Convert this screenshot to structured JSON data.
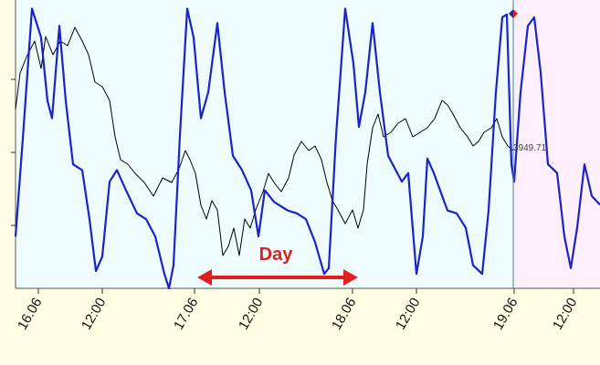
{
  "chart_data": {
    "type": "line",
    "xlim": [
      0,
      640
    ],
    "xticks": [
      {
        "value": 25,
        "label": "16.06"
      },
      {
        "value": 95,
        "label": "12:00"
      },
      {
        "value": 196,
        "label": "17.06"
      },
      {
        "value": 267,
        "label": "12:00"
      },
      {
        "value": 369,
        "label": "18.06"
      },
      {
        "value": 439,
        "label": "12:00"
      },
      {
        "value": 546,
        "label": "19.06"
      },
      {
        "value": 611,
        "label": "12:00"
      }
    ],
    "ylim": [
      3912.75,
      3991.75
    ],
    "yticks": [
      3930,
      3950,
      3970
    ],
    "y2lim": [
      0,
      100
    ],
    "last_value": 3949.71,
    "annotation": "Day",
    "series": [
      {
        "color": "#1a22c8",
        "axis": "y2",
        "x": [
          0,
          8,
          18,
          28,
          35,
          40,
          48,
          55,
          63,
          73,
          81,
          88,
          95,
          103,
          111,
          121,
          133,
          143,
          153,
          163,
          168,
          173,
          180,
          188,
          195,
          203,
          211,
          221,
          229,
          238,
          248,
          258,
          266,
          273,
          283,
          298,
          308,
          318,
          328,
          338,
          343,
          351,
          361,
          370,
          376,
          383,
          391,
          399,
          408,
          423,
          430,
          439,
          446,
          451,
          458,
          473,
          483,
          493,
          501,
          511,
          518,
          526,
          533,
          538,
          543,
          546,
          553,
          561,
          568,
          575,
          583,
          593,
          601,
          608,
          615,
          623,
          631,
          640
        ],
        "values": [
          18,
          52,
          97,
          87,
          65,
          59,
          91,
          65,
          43,
          41,
          24,
          6,
          11,
          37,
          41,
          34,
          26,
          24,
          18,
          5,
          0,
          8,
          53,
          97,
          87,
          59,
          68,
          92,
          68,
          46,
          41,
          34,
          18,
          34,
          30,
          27,
          26,
          24,
          16,
          5,
          7,
          53,
          97,
          78,
          56,
          68,
          92,
          68,
          46,
          37,
          40,
          5,
          18,
          45,
          40,
          27,
          26,
          21,
          8,
          5,
          27,
          68,
          94,
          95,
          43,
          37,
          68,
          91,
          94,
          75,
          43,
          40,
          18,
          7,
          21,
          43,
          32,
          29
        ]
      },
      {
        "color": "#000000",
        "x": [
          0,
          5,
          13,
          21,
          28,
          33,
          41,
          49,
          57,
          65,
          73,
          80,
          87,
          95,
          103,
          109,
          115,
          123,
          131,
          141,
          151,
          161,
          171,
          179,
          186,
          191,
          197,
          203,
          209,
          215,
          221,
          227,
          233,
          239,
          245,
          251,
          257,
          263,
          271,
          277,
          283,
          291,
          299,
          305,
          313,
          321,
          328,
          335,
          341,
          347,
          353,
          361,
          369,
          375,
          381,
          385,
          391,
          397,
          403,
          411,
          419,
          427,
          435,
          443,
          451,
          459,
          467,
          473,
          479,
          487,
          495,
          501,
          507,
          513,
          521,
          527,
          533,
          539,
          545
        ],
        "values": [
          3961.75,
          3971.75,
          3976.75,
          3980.5,
          3973,
          3981.75,
          3976.75,
          3980.5,
          3979.25,
          3984.25,
          3980.5,
          3976.75,
          3969.25,
          3968,
          3964.25,
          3954.25,
          3948,
          3946.75,
          3944.25,
          3941.75,
          3938,
          3943,
          3941.75,
          3945.5,
          3950.5,
          3948,
          3944.25,
          3935.5,
          3931.75,
          3936.75,
          3934.25,
          3921.75,
          3924.25,
          3929.25,
          3921.75,
          3931.75,
          3929.25,
          3934.25,
          3939.25,
          3944.25,
          3941.75,
          3939.25,
          3943,
          3949.25,
          3953,
          3950.5,
          3951.75,
          3948,
          3941.75,
          3936.75,
          3934.25,
          3930.5,
          3934.25,
          3929.25,
          3934.25,
          3946.75,
          3956.75,
          3960.5,
          3954.25,
          3955.5,
          3958,
          3959.25,
          3954.25,
          3955.5,
          3956.75,
          3959.25,
          3964.25,
          3963,
          3960.5,
          3956.75,
          3954.25,
          3951.75,
          3953,
          3955.5,
          3956.75,
          3959.25,
          3954.25,
          3951.75,
          3950.5
        ]
      }
    ]
  }
}
